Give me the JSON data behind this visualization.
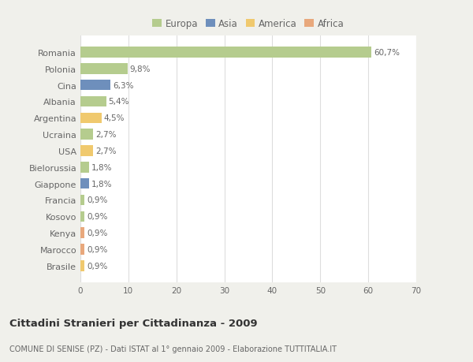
{
  "categories": [
    "Romania",
    "Polonia",
    "Cina",
    "Albania",
    "Argentina",
    "Ucraina",
    "USA",
    "Bielorussia",
    "Giappone",
    "Francia",
    "Kosovo",
    "Kenya",
    "Marocco",
    "Brasile"
  ],
  "values": [
    60.7,
    9.8,
    6.3,
    5.4,
    4.5,
    2.7,
    2.7,
    1.8,
    1.8,
    0.9,
    0.9,
    0.9,
    0.9,
    0.9
  ],
  "labels": [
    "60,7%",
    "9,8%",
    "6,3%",
    "5,4%",
    "4,5%",
    "2,7%",
    "2,7%",
    "1,8%",
    "1,8%",
    "0,9%",
    "0,9%",
    "0,9%",
    "0,9%",
    "0,9%"
  ],
  "colors": [
    "#b5cc8e",
    "#b5cc8e",
    "#6e8fbc",
    "#b5cc8e",
    "#f0c96e",
    "#b5cc8e",
    "#f0c96e",
    "#b5cc8e",
    "#6e8fbc",
    "#b5cc8e",
    "#b5cc8e",
    "#e8a87c",
    "#e8a87c",
    "#f0c96e"
  ],
  "legend_labels": [
    "Europa",
    "Asia",
    "America",
    "Africa"
  ],
  "legend_colors": [
    "#b5cc8e",
    "#6e8fbc",
    "#f0c96e",
    "#e8a87c"
  ],
  "xlim": [
    0,
    70
  ],
  "xticks": [
    0,
    10,
    20,
    30,
    40,
    50,
    60,
    70
  ],
  "title": "Cittadini Stranieri per Cittadinanza - 2009",
  "subtitle": "COMUNE DI SENISE (PZ) - Dati ISTAT al 1° gennaio 2009 - Elaborazione TUTTITALIA.IT",
  "bg_color": "#f0f0eb",
  "bar_bg_color": "#ffffff",
  "text_color": "#666666",
  "grid_color": "#dddddd"
}
